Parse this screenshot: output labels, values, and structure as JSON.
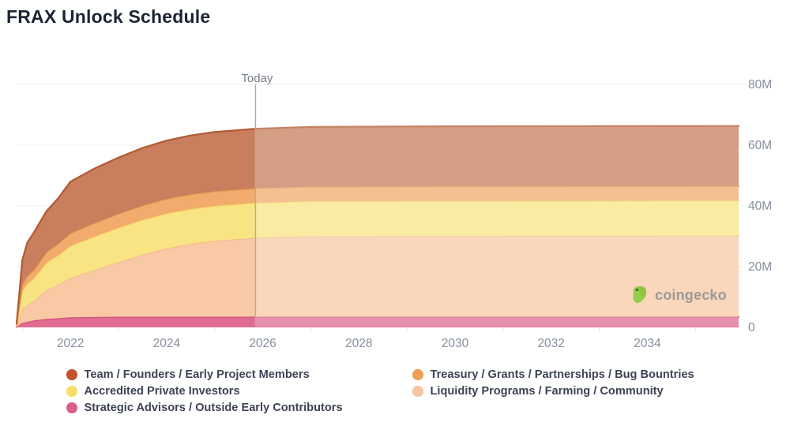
{
  "title": "FRAX Unlock Schedule",
  "watermark": {
    "text": "coingecko"
  },
  "chart_data": {
    "type": "area",
    "stacked": true,
    "title": "FRAX Unlock Schedule",
    "x_axis": {
      "range": [
        2020.88,
        2035.9
      ],
      "ticks": [
        2022,
        2024,
        2026,
        2028,
        2030,
        2032,
        2034
      ],
      "minor_ticks": [
        2021,
        2023,
        2025,
        2027,
        2029,
        2031,
        2033,
        2035
      ]
    },
    "y_axis": {
      "unit": "M",
      "range": [
        0,
        80
      ],
      "ticks": [
        {
          "value": 80,
          "label": "80M"
        },
        {
          "value": 60,
          "label": "60M"
        },
        {
          "value": 40,
          "label": "40M"
        },
        {
          "value": 20,
          "label": "20M"
        },
        {
          "value": 0,
          "label": "0"
        }
      ],
      "grid": true
    },
    "today": {
      "label": "Today",
      "x": 2025.85,
      "line_color": "#a9adb4",
      "label_color": "#767d89"
    },
    "future_overlay_color": "rgba(255,255,255,0.25)",
    "x": [
      2020.88,
      2021.0,
      2021.1,
      2021.25,
      2021.5,
      2021.75,
      2022.0,
      2022.5,
      2023.0,
      2023.5,
      2024.0,
      2024.5,
      2025.0,
      2025.85,
      2027.0,
      2030.0,
      2035.9
    ],
    "series": [
      {
        "id": "strategic-advisors",
        "name": "Strategic Advisors / Outside Early Contributors",
        "fill": "#e16c92",
        "edge": "#cc4e73",
        "values": [
          0.15,
          1.5,
          1.8,
          2.3,
          2.8,
          3.0,
          3.3,
          3.4,
          3.5,
          3.5,
          3.5,
          3.5,
          3.5,
          3.5,
          3.5,
          3.5,
          3.5
        ]
      },
      {
        "id": "liquidity-programs",
        "name": "Liquidity Programs / Farming / Community",
        "fill": "#f9c8a5",
        "edge": "#f4ba90",
        "values": [
          0.3,
          4.5,
          5.5,
          6.5,
          9.5,
          11.0,
          13.0,
          15.5,
          18.0,
          20.5,
          22.5,
          24.0,
          25.0,
          26.0,
          26.5,
          26.6,
          26.7
        ]
      },
      {
        "id": "accredited-investors",
        "name": "Accredited Private Investors",
        "fill": "#f9e483",
        "edge": "#f3d763",
        "values": [
          0.4,
          6.0,
          7.0,
          7.5,
          9.0,
          9.8,
          10.5,
          11.0,
          11.3,
          11.4,
          11.5,
          11.5,
          11.5,
          11.5,
          11.5,
          11.5,
          11.5
        ]
      },
      {
        "id": "treasury",
        "name": "Treasury / Grants / Partnerships / Bug Bountries",
        "fill": "#f2ab6c",
        "edge": "#e9994f",
        "values": [
          0.1,
          2.2,
          2.5,
          2.8,
          3.4,
          3.8,
          4.2,
          4.4,
          4.6,
          4.7,
          4.8,
          4.8,
          4.8,
          4.8,
          4.8,
          4.8,
          4.8
        ]
      },
      {
        "id": "team-founders",
        "name": "Team / Founders / Early Project Members",
        "fill": "#c97e5d",
        "edge": "#b25a33",
        "values": [
          0.35,
          8.0,
          11.0,
          12.4,
          13.5,
          15.0,
          17.0,
          18.0,
          18.5,
          19.0,
          19.2,
          19.4,
          19.5,
          19.6,
          19.7,
          19.8,
          19.8
        ]
      }
    ],
    "axis_text_color": "#868f9d",
    "gridline_color": "#edeff2"
  },
  "legend": {
    "items": [
      {
        "label": "Team / Founders / Early Project Members",
        "color": "#c2532f",
        "series": "team-founders"
      },
      {
        "label": "Treasury / Grants / Partnerships / Bug Bountries",
        "color": "#ee9f55",
        "series": "treasury"
      },
      {
        "label": "Accredited Private Investors",
        "color": "#f6de68",
        "series": "accredited-investors"
      },
      {
        "label": "Liquidity Programs / Farming / Community",
        "color": "#f8c59f",
        "series": "liquidity-programs"
      },
      {
        "label": "Strategic Advisors / Outside Early Contributors",
        "color": "#dc5f86",
        "series": "strategic-advisors"
      }
    ]
  }
}
